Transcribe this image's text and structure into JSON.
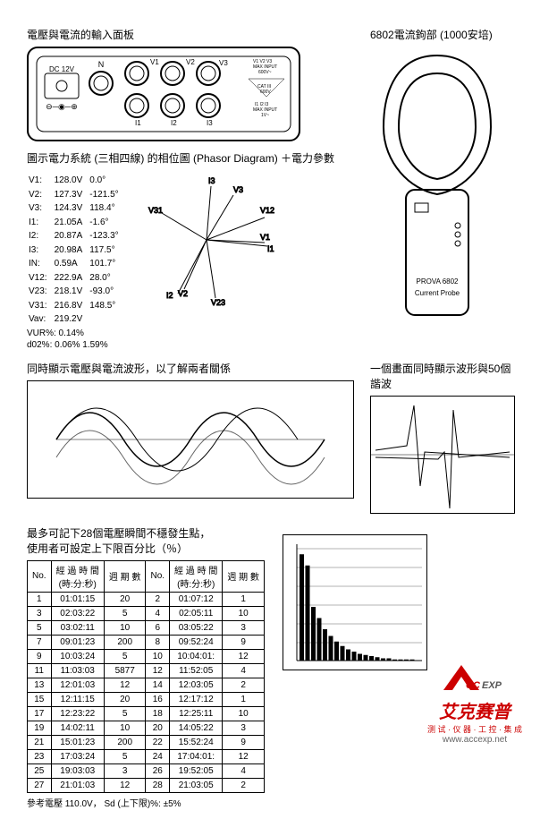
{
  "titles": {
    "panel": "電壓與電流的輸入面板",
    "clamp": "6802電流鉤部 (1000安培)",
    "phasor": "圖示電力系統 (三相四線) 的相位圖 (Phasor Diagram) ＋電力參數",
    "wave_left": "同時顯示電壓與電流波形，以了解兩者關係",
    "wave_right": "一個畫面同時顯示波形與50個諧波",
    "transients": "最多可記下28個電壓瞬間不穩發生點，\n使用者可設定上下限百分比（％）"
  },
  "panel": {
    "dc_label": "DC 12V",
    "n_label": "N",
    "v_labels": [
      "V1",
      "V2",
      "V3"
    ],
    "i_labels": [
      "I1",
      "I2",
      "I3"
    ],
    "max_v": "V1 V2 V3\nMAX INPUT\n600V~",
    "cat": "CAT III\n600V",
    "max_i": "I1 I2 I3\nMAX INPUT\n1V~"
  },
  "clamp": {
    "model": "PROVA 6802",
    "type": "Current Probe"
  },
  "phasor": {
    "rows": [
      [
        "V1:",
        "128.0V",
        "0.0°"
      ],
      [
        "V2:",
        "127.3V",
        "-121.5°"
      ],
      [
        "V3:",
        "124.3V",
        "118.4°"
      ],
      [
        "I1:",
        "21.05A",
        "-1.6°"
      ],
      [
        "I2:",
        "20.87A",
        "-123.3°"
      ],
      [
        "I3:",
        "20.98A",
        "117.5°"
      ],
      [
        "IN:",
        "0.59A",
        "101.7°"
      ],
      [
        "V12:",
        "222.9A",
        "28.0°"
      ],
      [
        "V23:",
        "218.1V",
        "-93.0°"
      ],
      [
        "V31:",
        "216.8V",
        "148.5°"
      ],
      [
        "Vav:",
        "219.2V",
        ""
      ]
    ],
    "extra": [
      "VUR%: 0.14%",
      "d02%:  0.06% 1.59%"
    ],
    "vectors": [
      "I3",
      "V3",
      "V31",
      "V12",
      "V1",
      "I1",
      "V2",
      "I2",
      "V23"
    ]
  },
  "transients": {
    "headers": [
      "No.",
      "經 過 時 間\n(時:分:秒)",
      "週 期 數",
      "No.",
      "經 過 時 間\n(時:分:秒)",
      "週 期 數"
    ],
    "rows": [
      [
        "1",
        "01:01:15",
        "20",
        "2",
        "01:07:12",
        "1"
      ],
      [
        "3",
        "02:03:22",
        "5",
        "4",
        "02:05:11",
        "10"
      ],
      [
        "5",
        "03:02:11",
        "10",
        "6",
        "03:05:22",
        "3"
      ],
      [
        "7",
        "09:01:23",
        "200",
        "8",
        "09:52:24",
        "9"
      ],
      [
        "9",
        "10:03:24",
        "5",
        "10",
        "10:04:01:",
        "12"
      ],
      [
        "11",
        "11:03:03",
        "5877",
        "12",
        "11:52:05",
        "4"
      ],
      [
        "13",
        "12:01:03",
        "12",
        "14",
        "12:03:05",
        "2"
      ],
      [
        "15",
        "12:11:15",
        "20",
        "16",
        "12:17:12",
        "1"
      ],
      [
        "17",
        "12:23:22",
        "5",
        "18",
        "12:25:11",
        "10"
      ],
      [
        "19",
        "14:02:11",
        "10",
        "20",
        "14:05:22",
        "3"
      ],
      [
        "21",
        "15:01:23",
        "200",
        "22",
        "15:52:24",
        "9"
      ],
      [
        "23",
        "17:03:24",
        "5",
        "24",
        "17:04:01:",
        "12"
      ],
      [
        "25",
        "19:03:03",
        "3",
        "26",
        "19:52:05",
        "4"
      ],
      [
        "27",
        "21:01:03",
        "12",
        "28",
        "21:03:05",
        "2"
      ]
    ],
    "footer": "參考電壓 110.0V，  Sd (上下限)%: ±5%"
  },
  "harmonics": {
    "bars": [
      95,
      85,
      48,
      38,
      28,
      22,
      17,
      13,
      10,
      8,
      6,
      5,
      4,
      3,
      2,
      2,
      1,
      1,
      1,
      1
    ]
  },
  "logo": {
    "brand": "艾克赛普",
    "sub": "测 试 · 仪 器 · 工 控 · 集 成",
    "url": "www.accexp.net",
    "a": "A",
    "cc": "CC",
    "exp": "EXP"
  }
}
